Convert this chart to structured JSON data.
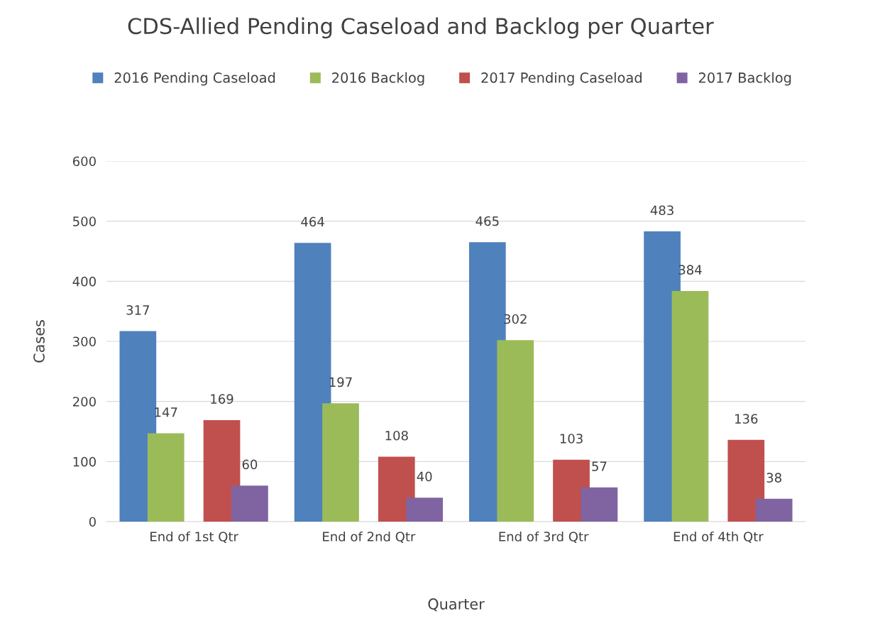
{
  "chart_data": {
    "type": "bar",
    "title": "CDS-Allied Pending Caseload and Backlog per Quarter",
    "xlabel": "Quarter",
    "ylabel": "Cases",
    "categories": [
      "End of 1st Qtr",
      "End of 2nd Qtr",
      "End of 3rd Qtr",
      "End of 4th Qtr"
    ],
    "series": [
      {
        "name": "2016 Pending Caseload",
        "color": "#4f81bd",
        "values": [
          317,
          464,
          465,
          483
        ]
      },
      {
        "name": "2016 Backlog",
        "color": "#9bbb59",
        "values": [
          147,
          197,
          302,
          384
        ]
      },
      {
        "name": "2017 Pending Caseload",
        "color": "#c0504d",
        "values": [
          169,
          108,
          103,
          136
        ]
      },
      {
        "name": "2017 Backlog",
        "color": "#8064a2",
        "values": [
          60,
          40,
          57,
          38
        ]
      }
    ],
    "ylim": [
      0,
      600
    ],
    "yticks": [
      0,
      100,
      200,
      300,
      400,
      500,
      600
    ],
    "grid": "y",
    "legend": "top",
    "data_labels": true
  }
}
